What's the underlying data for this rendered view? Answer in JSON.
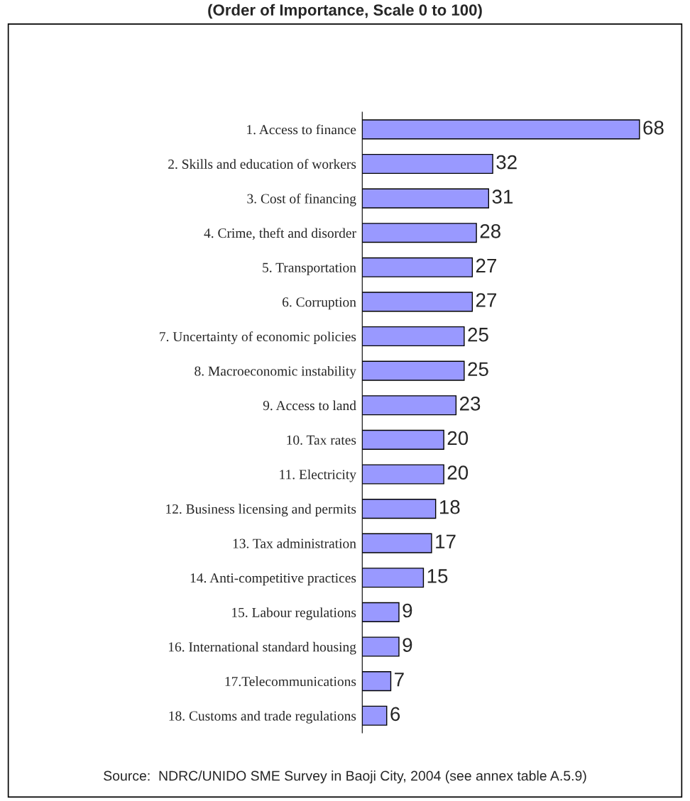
{
  "chart_data": {
    "type": "bar",
    "orientation": "horizontal",
    "title": "(Order of Importance, Scale 0 to 100)",
    "categories": [
      "1. Access to finance",
      "2. Skills and education of workers",
      "3. Cost of financing",
      "4. Crime, theft and disorder",
      "5. Transportation",
      "6. Corruption",
      "7. Uncertainty of economic policies",
      "8. Macroeconomic instability",
      "9. Access to land",
      "10. Tax rates",
      "11. Electricity",
      "12. Business licensing and permits",
      "13. Tax administration",
      "14. Anti-competitive practices",
      "15. Labour regulations",
      "16. International standard housing",
      "17.Telecommunications",
      "18. Customs and trade regulations"
    ],
    "values": [
      68,
      32,
      31,
      28,
      27,
      27,
      25,
      25,
      23,
      20,
      20,
      18,
      17,
      15,
      9,
      9,
      7,
      6
    ],
    "color": "#9999ff",
    "data_labels": true,
    "grid": false,
    "legend": false,
    "annotations": [
      "Source:  NDRC/UNIDO SME Survey in Baoji City, 2004 (see annex table A.5.9)"
    ]
  }
}
